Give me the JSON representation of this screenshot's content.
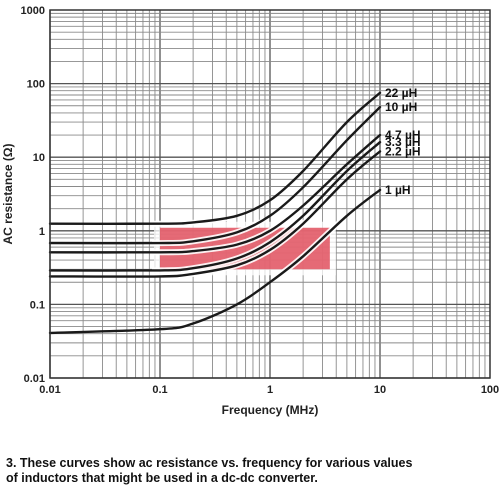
{
  "chart_data": {
    "type": "line",
    "xlabel": "Frequency (MHz)",
    "ylabel": "AC resistance (Ω)",
    "xscale": "log",
    "yscale": "log",
    "xlim": [
      0.01,
      100
    ],
    "ylim": [
      0.01,
      1000
    ],
    "xticks": [
      "0.01",
      "0.1",
      "1",
      "10",
      "100"
    ],
    "yticks": [
      "0.01",
      "0.1",
      "1",
      "10",
      "100",
      "1000"
    ],
    "grid": true,
    "highlight_region": {
      "x": [
        0.1,
        3.5
      ],
      "y": [
        0.3,
        1.1
      ],
      "color": "#e0505e"
    },
    "series": [
      {
        "name": "22 µH",
        "x": [
          0.01,
          0.1,
          0.2,
          0.5,
          1,
          2,
          5,
          10
        ],
        "y": [
          1.25,
          1.25,
          1.3,
          1.6,
          2.6,
          6.5,
          30,
          75
        ]
      },
      {
        "name": "10 µH",
        "x": [
          0.01,
          0.1,
          0.2,
          0.5,
          1,
          2,
          5,
          10
        ],
        "y": [
          0.68,
          0.68,
          0.72,
          0.95,
          1.6,
          3.9,
          17,
          48
        ]
      },
      {
        "name": "4.7 µH",
        "x": [
          0.01,
          0.1,
          0.2,
          0.5,
          1,
          2,
          5,
          10
        ],
        "y": [
          0.51,
          0.51,
          0.53,
          0.65,
          1.0,
          2.2,
          8,
          20
        ]
      },
      {
        "name": "3.3 µH",
        "x": [
          0.01,
          0.1,
          0.2,
          0.5,
          1,
          2,
          5,
          10
        ],
        "y": [
          0.29,
          0.29,
          0.31,
          0.42,
          0.7,
          1.6,
          6.5,
          16
        ]
      },
      {
        "name": "2.2 µH",
        "x": [
          0.01,
          0.1,
          0.2,
          0.5,
          1,
          2,
          5,
          10
        ],
        "y": [
          0.24,
          0.24,
          0.26,
          0.34,
          0.55,
          1.25,
          5,
          12
        ]
      },
      {
        "name": "1 µH",
        "x": [
          0.01,
          0.1,
          0.2,
          0.5,
          1,
          2,
          5,
          10
        ],
        "y": [
          0.041,
          0.046,
          0.055,
          0.1,
          0.2,
          0.45,
          1.6,
          3.6
        ]
      }
    ],
    "colors": {
      "line": "#1a1a1a",
      "grid_major": "#555555",
      "grid_minor": "#8a8a8a",
      "halo": "#ffffff"
    }
  },
  "caption": {
    "line1": "3. These curves show ac resistance vs. frequency for various values",
    "line2": "of inductors that might be used in a dc-dc converter."
  }
}
